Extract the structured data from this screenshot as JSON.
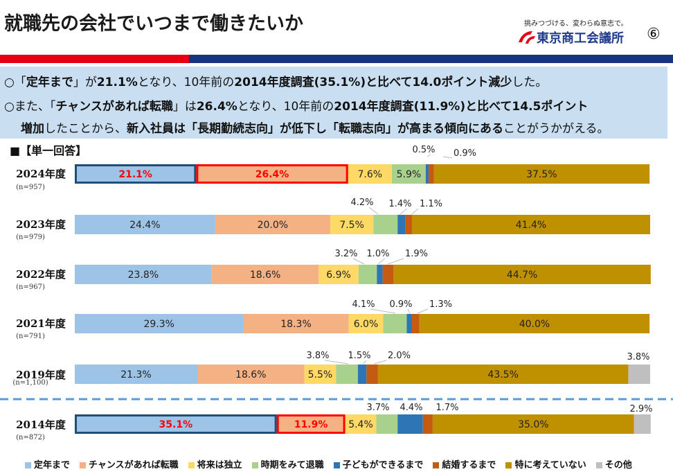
{
  "header": {
    "title": "就職先の会社でいつまで働きたいか",
    "logo_slogan": "挑みつづける、変わらぬ意志で。",
    "logo_name": "東京商工会議所",
    "page_number": "⑥"
  },
  "summary": {
    "line1": [
      {
        "t": "○「",
        "b": false
      },
      {
        "t": "定年まで",
        "b": true
      },
      {
        "t": "」が",
        "b": false
      },
      {
        "t": "21.1%",
        "b": true
      },
      {
        "t": "となり、10年前の",
        "b": false
      },
      {
        "t": "2014年度調査(35.1%)と比べて14.0ポイント減少",
        "b": true
      },
      {
        "t": "した。",
        "b": false
      }
    ],
    "line2": [
      {
        "t": "○また、「",
        "b": false
      },
      {
        "t": "チャンスがあれば転職",
        "b": true
      },
      {
        "t": "」は",
        "b": false
      },
      {
        "t": "26.4%",
        "b": true
      },
      {
        "t": "となり、10年前の",
        "b": false
      },
      {
        "t": "2014年度調査(11.9%)と比べて14.5ポイント",
        "b": true
      }
    ],
    "line3": [
      {
        "t": "増加",
        "b": true
      },
      {
        "t": "したことから、",
        "b": false
      },
      {
        "t": "新入社員は「長期勤続志向」が低下し「転職志向」が高まる傾向にある",
        "b": true
      },
      {
        "t": "ことがうかがえる。",
        "b": false
      }
    ]
  },
  "section_label": "■【単一回答】",
  "rows": [
    {
      "year": "2024年度",
      "n": "(n=957)"
    },
    {
      "year": "2023年度",
      "n": "(n=979)"
    },
    {
      "year": "2022年度",
      "n": "(n=967)"
    },
    {
      "year": "2021年度",
      "n": "(n=791)"
    },
    {
      "year": "2019年度",
      "n": "(n=1,100)"
    },
    {
      "year": "2014年度",
      "n": "(n=872)"
    }
  ],
  "chart_data": {
    "type": "bar",
    "orientation": "horizontal",
    "stacked": true,
    "percent_stacked": true,
    "categories": [
      "2024年度",
      "2023年度",
      "2022年度",
      "2021年度",
      "2019年度",
      "2014年度"
    ],
    "series": [
      {
        "name": "定年まで",
        "color": "#9dc3e6",
        "values": [
          21.1,
          24.4,
          23.8,
          29.3,
          21.3,
          35.1
        ]
      },
      {
        "name": "チャンスがあれば転職",
        "color": "#f4b183",
        "values": [
          26.4,
          20.0,
          18.6,
          18.3,
          18.6,
          11.9
        ]
      },
      {
        "name": "将来は独立",
        "color": "#ffd966",
        "values": [
          7.6,
          7.5,
          6.9,
          6.0,
          5.5,
          5.4
        ]
      },
      {
        "name": "時期をみて退職",
        "color": "#a9d18e",
        "values": [
          5.9,
          4.2,
          3.2,
          4.1,
          3.8,
          3.7
        ]
      },
      {
        "name": "子どもができるまで",
        "color": "#2e75b6",
        "values": [
          0.5,
          1.4,
          1.0,
          0.9,
          1.5,
          4.4
        ]
      },
      {
        "name": "結婚するまで",
        "color": "#c55a11",
        "values": [
          0.9,
          1.1,
          1.9,
          1.3,
          2.0,
          1.7
        ]
      },
      {
        "name": "特に考えていない",
        "color": "#bf9000",
        "values": [
          37.5,
          41.4,
          44.7,
          40.0,
          43.5,
          35.0
        ]
      },
      {
        "name": "その他",
        "color": "#bfbfbf",
        "values": [
          0,
          0,
          0,
          0,
          3.8,
          2.9
        ]
      }
    ],
    "highlights": [
      {
        "row": "2024年度",
        "series": "定年まで",
        "outline": "#1f4e79"
      },
      {
        "row": "2024年度",
        "series": "チャンスがあれば転職",
        "outline": "#ff0000"
      },
      {
        "row": "2014年度",
        "series": "定年まで",
        "outline": "#1f4e79"
      },
      {
        "row": "2014年度",
        "series": "チャンスがあれば転職",
        "outline": "#ff0000"
      }
    ],
    "grid": false,
    "legend_position": "bottom"
  }
}
